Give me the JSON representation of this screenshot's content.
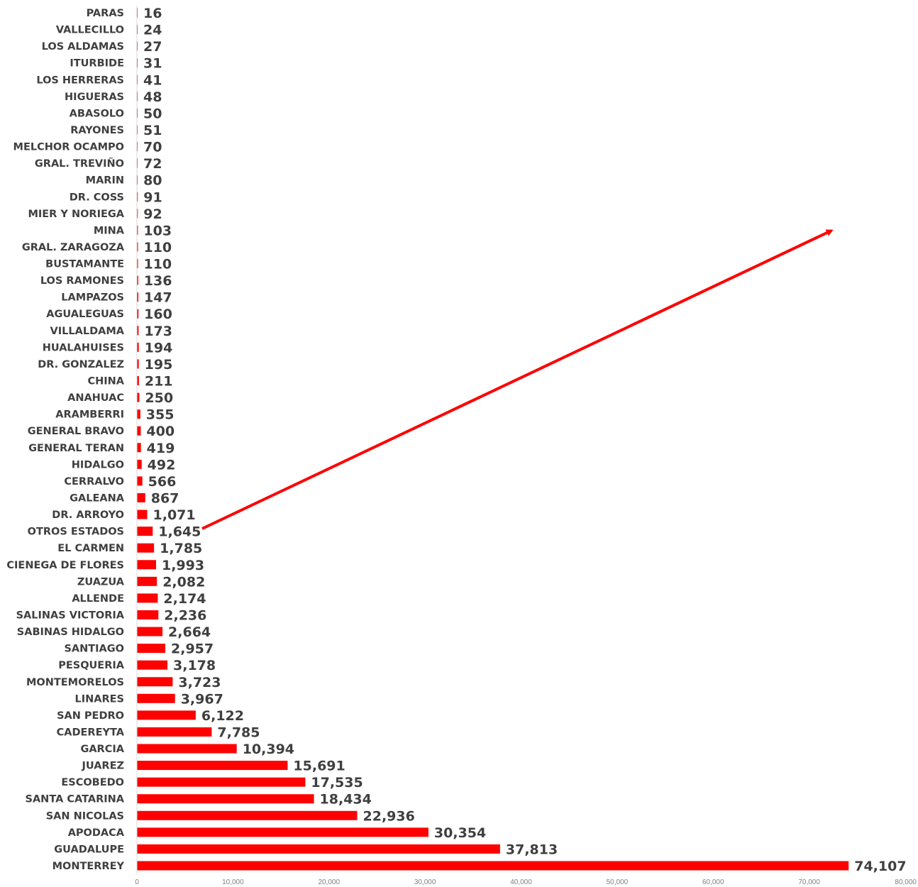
{
  "chart_data": {
    "type": "bar",
    "orientation": "horizontal",
    "title": "",
    "xlabel": "",
    "ylabel": "",
    "xlim": [
      0,
      80000
    ],
    "ticks": [
      {
        "value": 0,
        "label": "0"
      },
      {
        "value": 10000,
        "label": "10,000"
      },
      {
        "value": 20000,
        "label": "20,000"
      },
      {
        "value": 30000,
        "label": "30,000"
      },
      {
        "value": 40000,
        "label": "40,000"
      },
      {
        "value": 50000,
        "label": "50,000"
      },
      {
        "value": 60000,
        "label": "60,000"
      },
      {
        "value": 70000,
        "label": "70,000"
      },
      {
        "value": 80000,
        "label": "80,000"
      }
    ],
    "grid": false,
    "legend": "none",
    "bar_color": "#ff0000",
    "arrow_color": "#ff0000",
    "categories": [
      "PARAS",
      "VALLECILLO",
      "LOS ALDAMAS",
      "ITURBIDE",
      "LOS HERRERAS",
      "HIGUERAS",
      "ABASOLO",
      "RAYONES",
      "MELCHOR OCAMPO",
      "GRAL. TREVIÑO",
      "MARIN",
      "DR. COSS",
      "MIER Y NORIEGA",
      "MINA",
      "GRAL. ZARAGOZA",
      "BUSTAMANTE",
      "LOS RAMONES",
      "LAMPAZOS",
      "AGUALEGUAS",
      "VILLALDAMA",
      "HUALAHUISES",
      "DR. GONZALEZ",
      "CHINA",
      "ANAHUAC",
      "ARAMBERRI",
      "GENERAL BRAVO",
      "GENERAL TERAN",
      "HIDALGO",
      "CERRALVO",
      "GALEANA",
      "DR. ARROYO",
      "OTROS ESTADOS",
      "EL CARMEN",
      "CIENEGA DE FLORES",
      "ZUAZUA",
      "ALLENDE",
      "SALINAS VICTORIA",
      "SABINAS HIDALGO",
      "SANTIAGO",
      "PESQUERIA",
      "MONTEMORELOS",
      "LINARES",
      "SAN PEDRO",
      "CADEREYTA",
      "GARCIA",
      "JUAREZ",
      "ESCOBEDO",
      "SANTA CATARINA",
      "SAN NICOLAS",
      "APODACA",
      "GUADALUPE",
      "MONTERREY"
    ],
    "values": [
      16,
      24,
      27,
      31,
      41,
      48,
      50,
      51,
      70,
      72,
      80,
      91,
      92,
      103,
      110,
      110,
      136,
      147,
      160,
      173,
      194,
      195,
      211,
      250,
      355,
      400,
      419,
      492,
      566,
      867,
      1071,
      1645,
      1785,
      1993,
      2082,
      2174,
      2236,
      2664,
      2957,
      3178,
      3723,
      3967,
      6122,
      7785,
      10394,
      15691,
      17535,
      18434,
      22936,
      30354,
      37813,
      74107
    ],
    "data_labels": [
      "16",
      "24",
      "27",
      "31",
      "41",
      "48",
      "50",
      "51",
      "70",
      "72",
      "80",
      "91",
      "92",
      "103",
      "110",
      "110",
      "136",
      "147",
      "160",
      "173",
      "194",
      "195",
      "211",
      "250",
      "355",
      "400",
      "419",
      "492",
      "566",
      "867",
      "1,071",
      "1,645",
      "1,785",
      "1,993",
      "2,082",
      "2,174",
      "2,236",
      "2,664",
      "2,957",
      "3,178",
      "3,723",
      "3,967",
      "6,122",
      "7,785",
      "10,394",
      "15,691",
      "17,535",
      "18,434",
      "22,936",
      "30,354",
      "37,813",
      "74,107"
    ]
  }
}
